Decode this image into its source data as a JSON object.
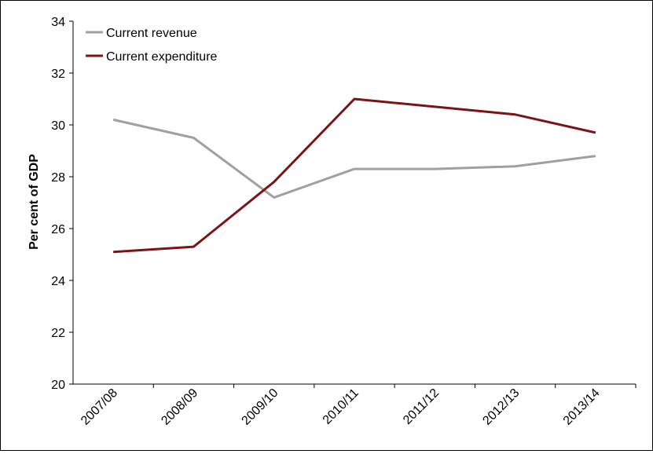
{
  "chart_data": {
    "type": "line",
    "title": "",
    "xlabel": "",
    "ylabel": "Per cent of GDP",
    "categories": [
      "2007/08",
      "2008/09",
      "2009/10",
      "2010/11",
      "2011/12",
      "2012/13",
      "2013/14"
    ],
    "ylim": [
      20,
      34
    ],
    "yticks": [
      20,
      22,
      24,
      26,
      28,
      30,
      32,
      34
    ],
    "grid": false,
    "legend_position": "top-left",
    "series": [
      {
        "name": "Current revenue",
        "color": "#a0a0a0",
        "values": [
          30.2,
          29.5,
          27.2,
          28.3,
          28.3,
          28.4,
          28.8
        ]
      },
      {
        "name": "Current expenditure",
        "color": "#7b1416",
        "values": [
          25.1,
          25.3,
          27.8,
          31.0,
          30.7,
          30.4,
          29.7
        ]
      }
    ]
  }
}
